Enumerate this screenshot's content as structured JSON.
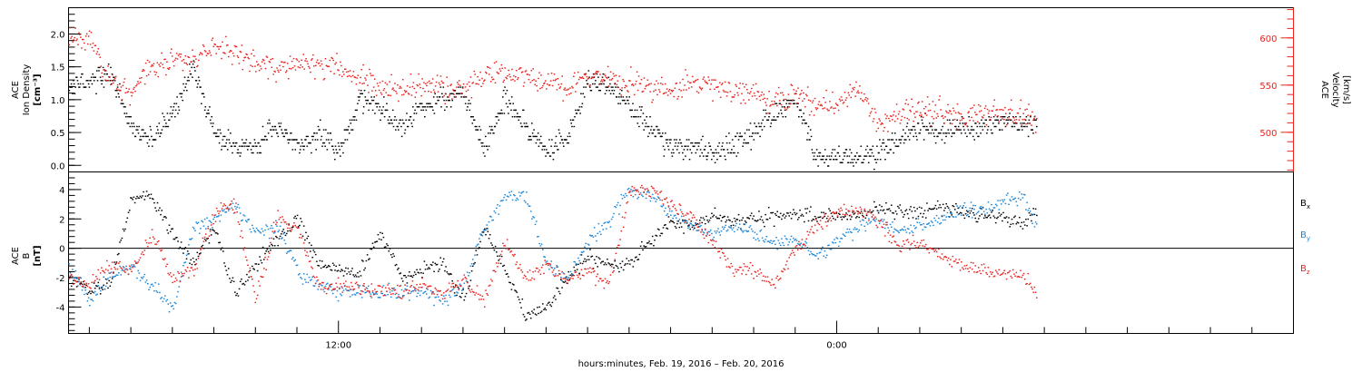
{
  "xaxis": {
    "label": "hours:minutes, Feb. 19, 2016 – Feb. 20, 2016",
    "tick_labels": [
      {
        "time_h": 12,
        "label": "12:00"
      },
      {
        "time_h": 24,
        "label": "0:00"
      }
    ],
    "range_h": [
      5.5,
      35.0
    ],
    "data_end_h": 28.8
  },
  "chart_data": [
    {
      "type": "scatter",
      "panel": "top",
      "ylabel_lines": [
        "ACE",
        "Ion Density",
        "[cm⁻³]"
      ],
      "ylim": [
        -0.1,
        2.4
      ],
      "ytick_labels": [
        "0.0",
        "0.5",
        "1.0",
        "1.5",
        "2.0"
      ],
      "ytick_values": [
        0.0,
        0.5,
        1.0,
        1.5,
        2.0
      ],
      "series": [
        {
          "key": "density",
          "axis": "left",
          "color": "#000000",
          "quantized_step": 0.05,
          "x_h": [
            5.5,
            6.0,
            6.5,
            7.0,
            7.5,
            8.0,
            8.5,
            9.0,
            9.5,
            10.0,
            10.5,
            11.0,
            11.5,
            12.0,
            12.5,
            13.0,
            13.5,
            14.0,
            14.5,
            15.0,
            15.5,
            16.0,
            16.5,
            17.0,
            17.5,
            18.0,
            18.5,
            19.0,
            19.5,
            20.0,
            20.5,
            21.0,
            21.5,
            22.0,
            22.5,
            23.0,
            23.5,
            24.0,
            24.5,
            25.0,
            25.5,
            26.0,
            26.5,
            27.0,
            27.5,
            28.0,
            28.5,
            28.8
          ],
          "y": [
            1.2,
            1.3,
            1.4,
            0.6,
            0.4,
            0.8,
            1.5,
            0.5,
            0.3,
            0.3,
            0.6,
            0.3,
            0.5,
            0.2,
            1.0,
            0.9,
            0.6,
            0.9,
            1.0,
            1.1,
            0.3,
            1.0,
            0.6,
            0.2,
            0.4,
            1.3,
            1.2,
            0.9,
            0.6,
            0.3,
            0.25,
            0.2,
            0.3,
            0.5,
            0.8,
            1.0,
            0.1,
            0.15,
            0.1,
            0.2,
            0.4,
            0.6,
            0.5,
            0.6,
            0.55,
            0.7,
            0.65,
            0.6
          ]
        },
        {
          "key": "velocity",
          "axis": "right",
          "color": "#e8231f",
          "x_h": [
            5.5,
            6.0,
            6.5,
            7.0,
            7.5,
            8.0,
            8.5,
            9.0,
            9.5,
            10.0,
            10.5,
            11.0,
            11.5,
            12.0,
            12.5,
            13.0,
            13.5,
            14.0,
            14.5,
            15.0,
            15.5,
            16.0,
            16.5,
            17.0,
            17.5,
            18.0,
            18.5,
            19.0,
            19.5,
            20.0,
            20.5,
            21.0,
            21.5,
            22.0,
            22.5,
            23.0,
            23.5,
            24.0,
            24.5,
            25.0,
            25.5,
            26.0,
            26.5,
            27.0,
            27.5,
            28.0,
            28.5,
            28.8
          ],
          "y": [
            595,
            600,
            555,
            545,
            570,
            580,
            575,
            590,
            585,
            575,
            570,
            575,
            570,
            568,
            560,
            548,
            545,
            550,
            548,
            547,
            560,
            562,
            560,
            556,
            545,
            560,
            558,
            552,
            548,
            545,
            555,
            548,
            543,
            540,
            532,
            540,
            532,
            530,
            545,
            508,
            520,
            525,
            522,
            518,
            520,
            522,
            519,
            520
          ]
        }
      ],
      "right_axis": {
        "ylabel_lines": [
          "ACE",
          "Velocity",
          "[km/s]"
        ],
        "ylim": [
          458,
          632
        ],
        "ytick_labels": [
          "500",
          "550",
          "600"
        ],
        "ytick_values": [
          500,
          550,
          600
        ],
        "color": "#e8231f"
      }
    },
    {
      "type": "scatter",
      "panel": "bottom",
      "ylabel_lines": [
        "ACE",
        "B",
        "[nT]"
      ],
      "ylim": [
        -5.8,
        5.2
      ],
      "ytick_labels": [
        "-4",
        "-2",
        "0",
        "2",
        "4"
      ],
      "ytick_values": [
        -4,
        -2,
        0,
        2,
        4
      ],
      "zero_line": true,
      "series": [
        {
          "key": "bx",
          "name": "B",
          "subscript": "x",
          "color": "#000000",
          "x_h": [
            5.5,
            6.0,
            6.5,
            7.0,
            7.5,
            8.0,
            8.5,
            9.0,
            9.5,
            10.0,
            10.5,
            11.0,
            11.5,
            12.0,
            12.5,
            13.0,
            13.5,
            14.0,
            14.5,
            15.0,
            15.5,
            16.0,
            16.5,
            17.0,
            17.5,
            18.0,
            18.5,
            19.0,
            19.5,
            20.0,
            20.5,
            21.0,
            21.5,
            22.0,
            22.5,
            23.0,
            23.5,
            24.0,
            24.5,
            25.0,
            25.5,
            26.0,
            26.5,
            27.0,
            27.5,
            28.0,
            28.5,
            28.8
          ],
          "y": [
            -2.0,
            -2.8,
            -2.4,
            3.5,
            3.6,
            1.0,
            -1.0,
            1.5,
            -3.0,
            -1.0,
            0.5,
            2.0,
            -1.0,
            -1.5,
            -1.5,
            1.0,
            -2.0,
            -1.5,
            -1.0,
            -3.5,
            1.5,
            -1.5,
            -4.5,
            -4.0,
            -2.0,
            -0.5,
            -1.2,
            -1.0,
            0.5,
            1.8,
            1.5,
            2.2,
            1.8,
            2.0,
            2.2,
            2.5,
            2.0,
            2.3,
            2.3,
            2.8,
            2.5,
            2.6,
            2.8,
            2.5,
            2.3,
            2.2,
            1.8,
            2.6
          ]
        },
        {
          "key": "by",
          "name": "B",
          "subscript": "y",
          "color": "#1a86d8",
          "x_h": [
            5.5,
            6.0,
            6.5,
            7.0,
            7.5,
            8.0,
            8.5,
            9.0,
            9.5,
            10.0,
            10.5,
            11.0,
            11.5,
            12.0,
            12.5,
            13.0,
            13.5,
            14.0,
            14.5,
            15.0,
            15.5,
            16.0,
            16.5,
            17.0,
            17.5,
            18.0,
            18.5,
            19.0,
            19.5,
            20.0,
            20.5,
            21.0,
            21.5,
            22.0,
            22.5,
            23.0,
            23.5,
            24.0,
            24.5,
            25.0,
            25.5,
            26.0,
            26.5,
            27.0,
            27.5,
            28.0,
            28.5,
            28.8
          ],
          "y": [
            -1.5,
            -3.5,
            -2.0,
            -1.0,
            -2.5,
            -4.0,
            1.5,
            2.0,
            3.0,
            1.0,
            1.5,
            -1.5,
            -2.5,
            -2.8,
            -2.9,
            -3.0,
            -3.0,
            -2.8,
            -3.5,
            -2.5,
            1.5,
            3.5,
            3.6,
            -1.0,
            -2.0,
            0.5,
            2.0,
            4.0,
            3.5,
            2.5,
            1.5,
            1.0,
            1.5,
            1.0,
            0.5,
            0.5,
            -0.5,
            0.5,
            1.5,
            2.0,
            1.2,
            1.5,
            2.0,
            2.8,
            2.5,
            3.2,
            3.5,
            1.5
          ]
        },
        {
          "key": "bz",
          "name": "B",
          "subscript": "z",
          "color": "#e8231f",
          "x_h": [
            5.5,
            6.0,
            6.5,
            7.0,
            7.5,
            8.0,
            8.5,
            9.0,
            9.5,
            10.0,
            10.5,
            11.0,
            11.5,
            12.0,
            12.5,
            13.0,
            13.5,
            14.0,
            14.5,
            15.0,
            15.5,
            16.0,
            16.5,
            17.0,
            17.5,
            18.0,
            18.5,
            19.0,
            19.5,
            20.0,
            20.5,
            21.0,
            21.5,
            22.0,
            22.5,
            23.0,
            23.5,
            24.0,
            24.5,
            25.0,
            25.5,
            26.0,
            26.5,
            27.0,
            27.5,
            28.0,
            28.5,
            28.8
          ],
          "y": [
            -2.0,
            -2.5,
            -1.0,
            -1.5,
            1.0,
            -2.0,
            -1.5,
            2.5,
            3.0,
            -3.5,
            2.0,
            1.5,
            -2.5,
            -2.5,
            -2.7,
            -2.8,
            -3.0,
            -2.5,
            -3.2,
            -2.0,
            -3.5,
            0.5,
            -2.0,
            -1.0,
            -2.0,
            -1.5,
            -2.5,
            4.0,
            4.0,
            3.0,
            2.0,
            0.5,
            -1.5,
            -1.5,
            -2.5,
            0.0,
            1.5,
            2.5,
            2.5,
            2.0,
            0.0,
            0.5,
            -0.5,
            -1.0,
            -1.5,
            -1.8,
            -2.0,
            -3.0
          ]
        }
      ]
    }
  ]
}
